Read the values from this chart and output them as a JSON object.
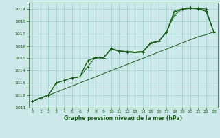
{
  "title": "Graphe pression niveau de la mer (hPa)",
  "bg_color": "#cce8e8",
  "grid_color": "#99cccc",
  "line_color": "#1a5c1a",
  "xlim": [
    -0.5,
    23.5
  ],
  "ylim": [
    1011,
    1019.5
  ],
  "yticks": [
    1011,
    1012,
    1013,
    1014,
    1015,
    1016,
    1017,
    1018,
    1019
  ],
  "xticks": [
    0,
    1,
    2,
    3,
    4,
    5,
    6,
    7,
    8,
    9,
    10,
    11,
    12,
    13,
    14,
    15,
    16,
    17,
    18,
    19,
    20,
    21,
    22,
    23
  ],
  "line1": [
    1011.5,
    1011.8,
    1012.0,
    1013.0,
    1013.2,
    1013.4,
    1013.5,
    1014.8,
    1015.1,
    1015.05,
    1015.8,
    1015.6,
    1015.55,
    1015.5,
    1015.55,
    1016.25,
    1016.4,
    1017.15,
    1018.85,
    1019.0,
    1019.1,
    1019.05,
    1019.0,
    1017.15
  ],
  "line2": [
    1011.5,
    1011.8,
    1012.0,
    1013.0,
    1013.2,
    1013.4,
    1013.5,
    1014.3,
    1015.1,
    1015.05,
    1015.8,
    1015.6,
    1015.55,
    1015.5,
    1015.55,
    1016.25,
    1016.4,
    1017.15,
    1018.5,
    1019.0,
    1019.1,
    1019.05,
    1018.85,
    1017.15
  ],
  "line3": [
    1011.5,
    1011.8,
    1012.0,
    1013.0,
    1013.2,
    1013.4,
    1013.5,
    1014.8,
    1015.05,
    1015.0,
    1015.75,
    1015.55,
    1015.5,
    1015.45,
    1015.5,
    1016.2,
    1016.35,
    1017.1,
    1018.75,
    1018.95,
    1019.05,
    1019.0,
    1018.8,
    1017.1
  ],
  "line4_smooth": [
    1011.5,
    1011.75,
    1012.0,
    1012.25,
    1012.5,
    1012.75,
    1013.0,
    1013.25,
    1013.5,
    1013.75,
    1014.0,
    1014.25,
    1014.5,
    1014.75,
    1015.0,
    1015.25,
    1015.5,
    1015.75,
    1016.0,
    1016.25,
    1016.5,
    1016.75,
    1016.9,
    1017.15
  ]
}
